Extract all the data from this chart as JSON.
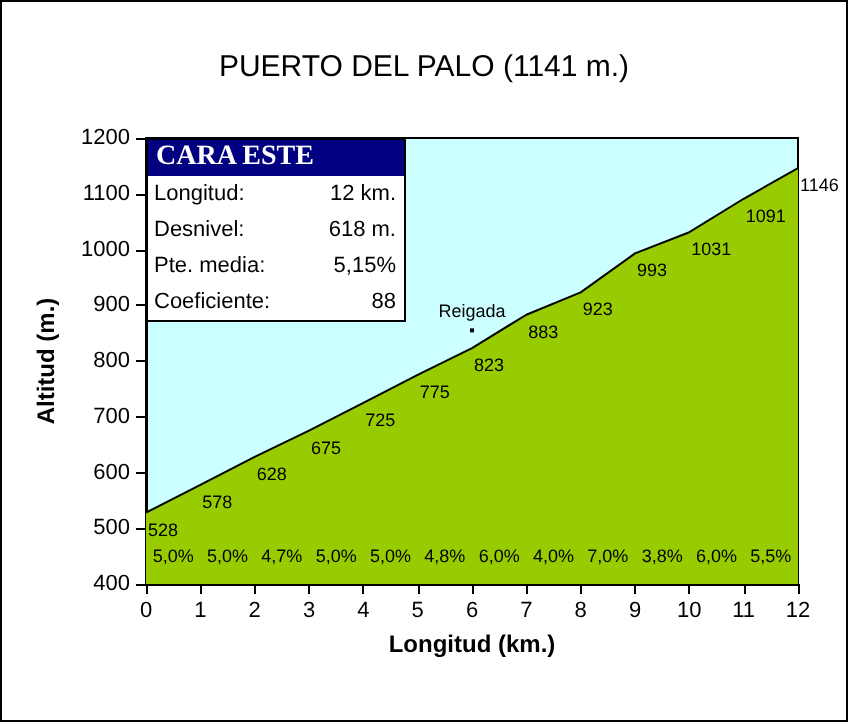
{
  "chart_data": {
    "type": "area",
    "title": "PUERTO DEL PALO (1141 m.)",
    "xlabel": "Longitud (km.)",
    "ylabel": "Altitud (m.)",
    "x": [
      0,
      1,
      2,
      3,
      4,
      5,
      6,
      7,
      8,
      9,
      10,
      11,
      12
    ],
    "series": [
      {
        "color": "#99cc00",
        "values": [
          528,
          578,
          628,
          675,
          725,
          775,
          823,
          883,
          923,
          993,
          1031,
          1091,
          1146
        ]
      }
    ],
    "data_labels": true,
    "xlim": [
      0,
      12
    ],
    "xticks": [
      0,
      1,
      2,
      3,
      4,
      5,
      6,
      7,
      8,
      9,
      10,
      11,
      12
    ],
    "ylim": [
      400,
      1200
    ],
    "yticks": [
      400,
      500,
      600,
      700,
      800,
      900,
      1000,
      1100,
      1200
    ],
    "grid": false,
    "annotations": [
      "CARA ESTE",
      "Longitud:",
      "12 km.",
      "Desnivel:",
      "618 m.",
      "Pte. media:",
      "5,15%",
      "Coeficiente:",
      "88",
      {
        "text": "Reigada",
        "x": 6,
        "y": 855
      },
      "5,0%",
      "5,0%",
      "4,7%",
      "5,0%",
      "5,0%",
      "4,8%",
      "6,0%",
      "4,0%",
      "7,0%",
      "3,8%",
      "6,0%",
      "5,5%"
    ]
  }
}
